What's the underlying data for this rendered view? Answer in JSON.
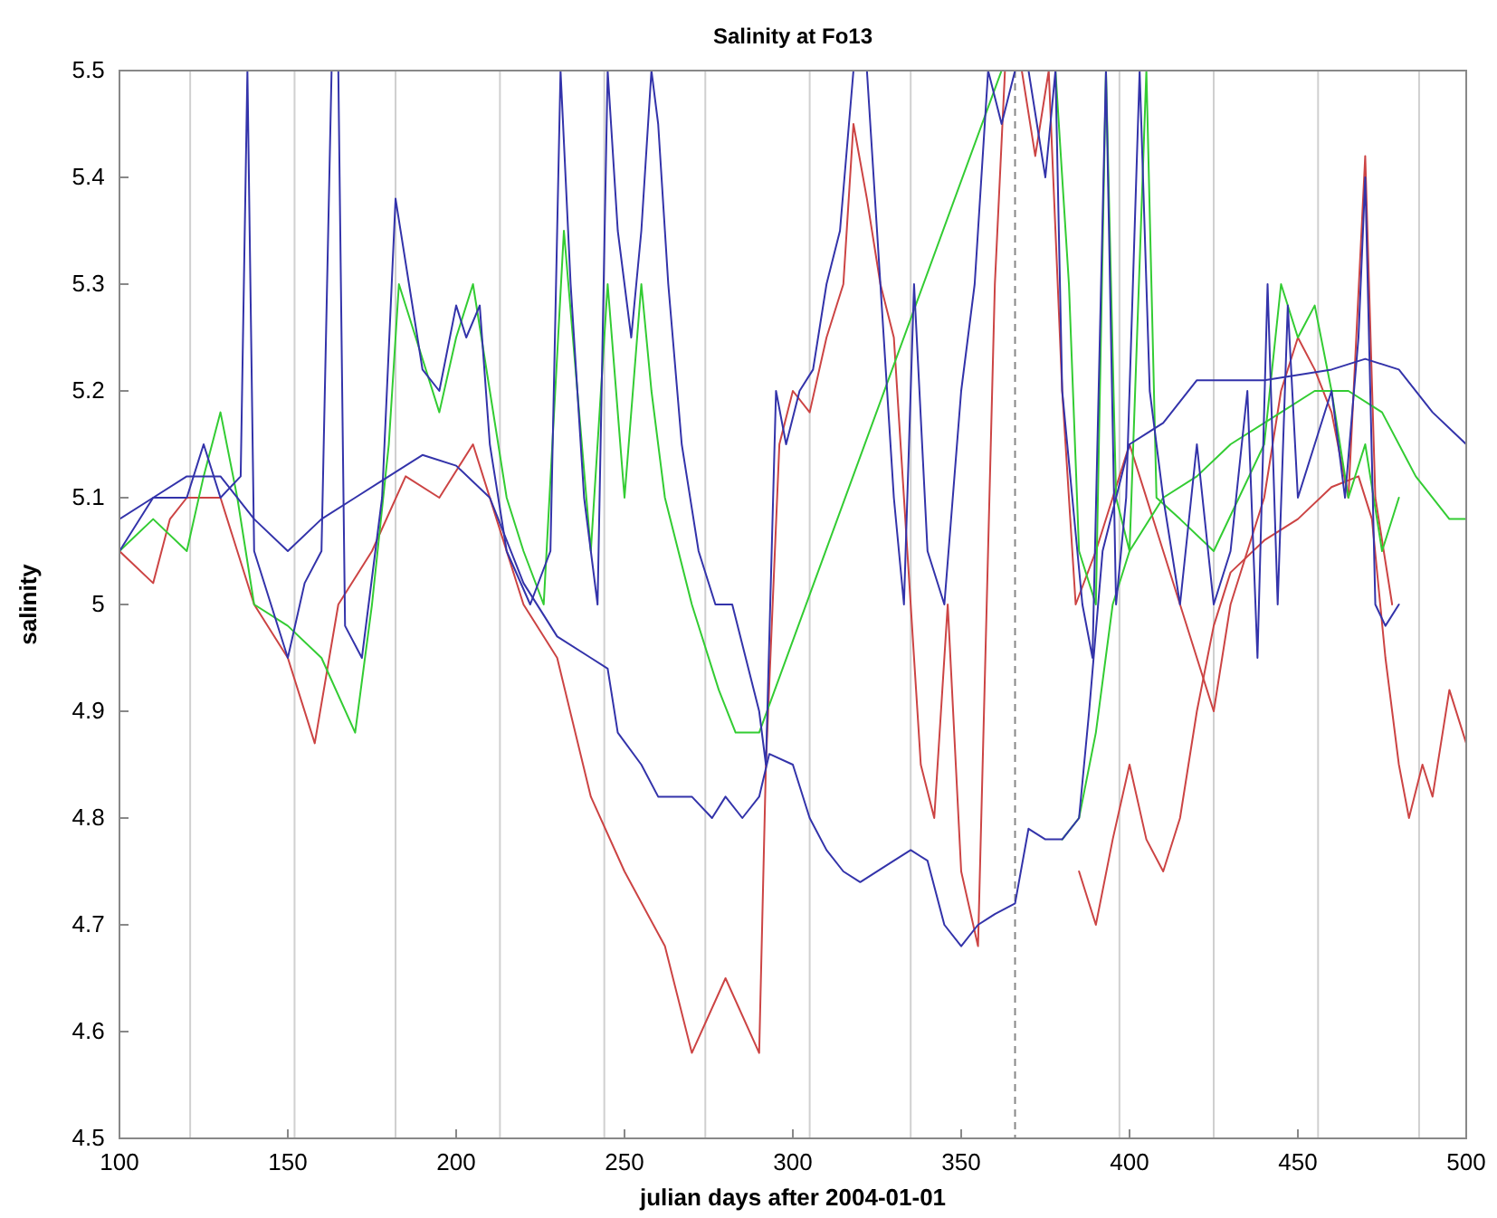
{
  "chart_data": {
    "type": "line",
    "title": "Salinity at Fo13",
    "xlabel": "julian days after 2004-01-01",
    "ylabel": "salinity",
    "xlim": [
      100,
      500
    ],
    "xticks": [
      100,
      150,
      200,
      250,
      300,
      350,
      400,
      450,
      500
    ],
    "ylim": [
      4.5,
      5.5
    ],
    "yticks": [
      4.5,
      4.6,
      4.7,
      4.8,
      4.9,
      5,
      5.1,
      5.2,
      5.3,
      5.4,
      5.5
    ],
    "grid": false,
    "marker": "none",
    "line_style": "solid",
    "ref_lines": [
      {
        "axis": "x",
        "value": 121,
        "color": "#d0d0d0",
        "line_style": "solid"
      },
      {
        "axis": "x",
        "value": 152,
        "color": "#d0d0d0",
        "line_style": "solid"
      },
      {
        "axis": "x",
        "value": 182,
        "color": "#d0d0d0",
        "line_style": "solid"
      },
      {
        "axis": "x",
        "value": 213,
        "color": "#d0d0d0",
        "line_style": "solid"
      },
      {
        "axis": "x",
        "value": 244,
        "color": "#d0d0d0",
        "line_style": "solid"
      },
      {
        "axis": "x",
        "value": 274,
        "color": "#d0d0d0",
        "line_style": "solid"
      },
      {
        "axis": "x",
        "value": 305,
        "color": "#d0d0d0",
        "line_style": "solid"
      },
      {
        "axis": "x",
        "value": 335,
        "color": "#d0d0d0",
        "line_style": "solid"
      },
      {
        "axis": "x",
        "value": 366,
        "color": "#888888",
        "line_style": "dashed"
      },
      {
        "axis": "x",
        "value": 397,
        "color": "#d0d0d0",
        "line_style": "solid"
      },
      {
        "axis": "x",
        "value": 425,
        "color": "#d0d0d0",
        "line_style": "solid"
      },
      {
        "axis": "x",
        "value": 456,
        "color": "#d0d0d0",
        "line_style": "solid"
      },
      {
        "axis": "x",
        "value": 486,
        "color": "#d0d0d0",
        "line_style": "solid"
      }
    ],
    "series": [
      {
        "color": "#cc4444",
        "x": [
          100,
          110,
          115,
          120,
          130,
          140,
          150,
          158,
          165,
          175,
          185,
          195,
          205,
          212,
          220,
          230,
          240,
          250,
          262,
          270,
          280,
          290,
          292,
          296,
          300,
          305,
          310,
          315,
          318,
          322,
          326,
          330,
          334,
          338,
          342,
          346,
          350,
          355,
          360,
          363,
          368,
          372,
          376,
          380,
          384,
          390,
          395,
          400,
          410,
          420,
          425,
          430,
          440,
          445,
          450,
          455,
          460,
          465,
          470,
          473,
          478
        ],
        "values": [
          5.05,
          5.02,
          5.08,
          5.1,
          5.1,
          5,
          4.95,
          4.87,
          5,
          5.05,
          5.12,
          5.1,
          5.15,
          5.08,
          5,
          4.95,
          4.82,
          4.75,
          4.68,
          4.58,
          4.65,
          4.58,
          4.85,
          5.15,
          5.2,
          5.18,
          5.25,
          5.3,
          5.45,
          5.38,
          5.3,
          5.25,
          5.05,
          4.85,
          4.8,
          5,
          4.75,
          4.68,
          5.3,
          5.5,
          5.5,
          5.42,
          5.5,
          5.2,
          5,
          5.05,
          5.1,
          5.15,
          5.05,
          4.95,
          4.9,
          5,
          5.1,
          5.2,
          5.25,
          5.22,
          5.18,
          5.1,
          5.42,
          5.1,
          5
        ]
      },
      {
        "color": "#cc4444",
        "x": [
          385,
          390,
          395,
          400,
          405,
          410,
          415,
          420,
          425,
          430,
          440,
          450,
          460,
          468,
          472,
          476,
          480,
          483,
          487,
          490,
          495,
          500
        ],
        "values": [
          4.75,
          4.7,
          4.78,
          4.85,
          4.78,
          4.75,
          4.8,
          4.9,
          4.98,
          5.03,
          5.06,
          5.08,
          5.11,
          5.12,
          5.08,
          4.95,
          4.85,
          4.8,
          4.85,
          4.82,
          4.92,
          4.87
        ]
      },
      {
        "color": "#33cc33",
        "x": [
          100,
          110,
          120,
          125,
          130,
          135,
          140,
          150,
          160,
          170,
          175,
          180,
          183,
          188,
          195,
          200,
          205,
          210,
          215,
          220,
          226,
          232,
          236,
          240,
          245,
          250,
          255,
          258,
          262,
          270,
          278,
          283,
          290,
          362,
          378,
          382,
          385,
          390,
          393,
          396,
          400,
          405,
          408,
          415,
          425,
          440,
          445,
          450,
          455,
          460,
          465,
          470,
          475,
          480
        ],
        "values": [
          5.05,
          5.08,
          5.05,
          5.12,
          5.18,
          5.1,
          5,
          4.98,
          4.95,
          4.88,
          5,
          5.15,
          5.3,
          5.25,
          5.18,
          5.25,
          5.3,
          5.2,
          5.1,
          5.05,
          5,
          5.35,
          5.2,
          5.05,
          5.3,
          5.1,
          5.3,
          5.2,
          5.1,
          5,
          4.92,
          4.88,
          4.88,
          5.5,
          5.5,
          5.3,
          5.05,
          5,
          5.5,
          5.1,
          5.05,
          5.5,
          5.1,
          5.08,
          5.05,
          5.15,
          5.3,
          5.25,
          5.28,
          5.2,
          5.1,
          5.15,
          5.05,
          5.1
        ]
      },
      {
        "color": "#33cc33",
        "x": [
          380,
          385,
          390,
          395,
          400,
          410,
          420,
          430,
          445,
          455,
          465,
          475,
          485,
          495,
          500
        ],
        "values": [
          4.78,
          4.8,
          4.88,
          5,
          5.05,
          5.1,
          5.12,
          5.15,
          5.18,
          5.2,
          5.2,
          5.18,
          5.12,
          5.08,
          5.08
        ]
      },
      {
        "color": "#3333aa",
        "x": [
          100,
          110,
          120,
          125,
          130,
          136,
          138,
          140,
          145,
          150,
          155,
          160,
          163,
          165,
          167,
          172,
          178,
          182,
          186,
          190,
          195,
          200,
          203,
          207,
          210,
          215,
          222,
          228,
          231,
          234,
          238,
          242,
          245,
          248,
          252,
          255,
          258,
          260,
          263,
          267,
          272,
          277,
          282,
          286,
          290,
          292,
          295,
          298,
          302,
          306,
          310,
          314,
          318,
          322,
          326,
          330,
          333,
          336,
          340,
          345,
          350,
          354,
          358,
          362,
          366,
          370,
          375,
          378,
          380,
          383,
          386,
          389,
          393,
          396,
          399,
          403,
          406,
          410,
          415,
          420,
          425,
          430,
          435,
          438,
          441,
          444,
          447,
          450,
          455,
          460,
          464,
          468,
          470,
          473,
          476,
          480
        ],
        "values": [
          5.08,
          5.1,
          5.1,
          5.15,
          5.1,
          5.12,
          5.5,
          5.05,
          5,
          4.95,
          5.02,
          5.05,
          5.5,
          5.5,
          4.98,
          4.95,
          5.1,
          5.38,
          5.3,
          5.22,
          5.2,
          5.28,
          5.25,
          5.28,
          5.15,
          5.05,
          5,
          5.05,
          5.5,
          5.3,
          5.1,
          5,
          5.5,
          5.35,
          5.25,
          5.35,
          5.5,
          5.45,
          5.3,
          5.15,
          5.05,
          5,
          5,
          4.95,
          4.9,
          4.85,
          5.2,
          5.15,
          5.2,
          5.22,
          5.3,
          5.35,
          5.5,
          5.5,
          5.3,
          5.1,
          5,
          5.3,
          5.05,
          5,
          5.2,
          5.3,
          5.5,
          5.45,
          5.5,
          5.5,
          5.4,
          5.5,
          5.2,
          5.1,
          5,
          4.95,
          5.5,
          5,
          5.1,
          5.5,
          5.2,
          5.1,
          5,
          5.15,
          5,
          5.05,
          5.2,
          4.95,
          5.3,
          5,
          5.28,
          5.1,
          5.15,
          5.2,
          5.1,
          5.25,
          5.4,
          5,
          4.98,
          5
        ]
      },
      {
        "color": "#3333aa",
        "x": [
          100,
          110,
          120,
          130,
          140,
          150,
          160,
          170,
          180,
          190,
          200,
          210,
          220,
          230,
          240,
          245,
          248,
          255,
          260,
          270,
          276,
          280,
          285,
          290,
          293,
          300,
          305,
          310,
          315,
          320,
          330,
          335,
          340,
          345,
          350,
          355,
          360,
          366,
          370,
          375,
          380,
          385,
          388,
          392,
          396,
          400,
          410,
          420,
          440,
          460,
          470,
          480,
          490,
          500
        ],
        "values": [
          5.05,
          5.1,
          5.12,
          5.12,
          5.08,
          5.05,
          5.08,
          5.1,
          5.12,
          5.14,
          5.13,
          5.1,
          5.02,
          4.97,
          4.95,
          4.94,
          4.88,
          4.85,
          4.82,
          4.82,
          4.8,
          4.82,
          4.8,
          4.82,
          4.86,
          4.85,
          4.8,
          4.77,
          4.75,
          4.74,
          4.76,
          4.77,
          4.76,
          4.7,
          4.68,
          4.7,
          4.71,
          4.72,
          4.79,
          4.78,
          4.78,
          4.8,
          4.9,
          5.05,
          5.1,
          5.15,
          5.17,
          5.21,
          5.21,
          5.22,
          5.23,
          5.22,
          5.18,
          5.15
        ]
      }
    ]
  }
}
